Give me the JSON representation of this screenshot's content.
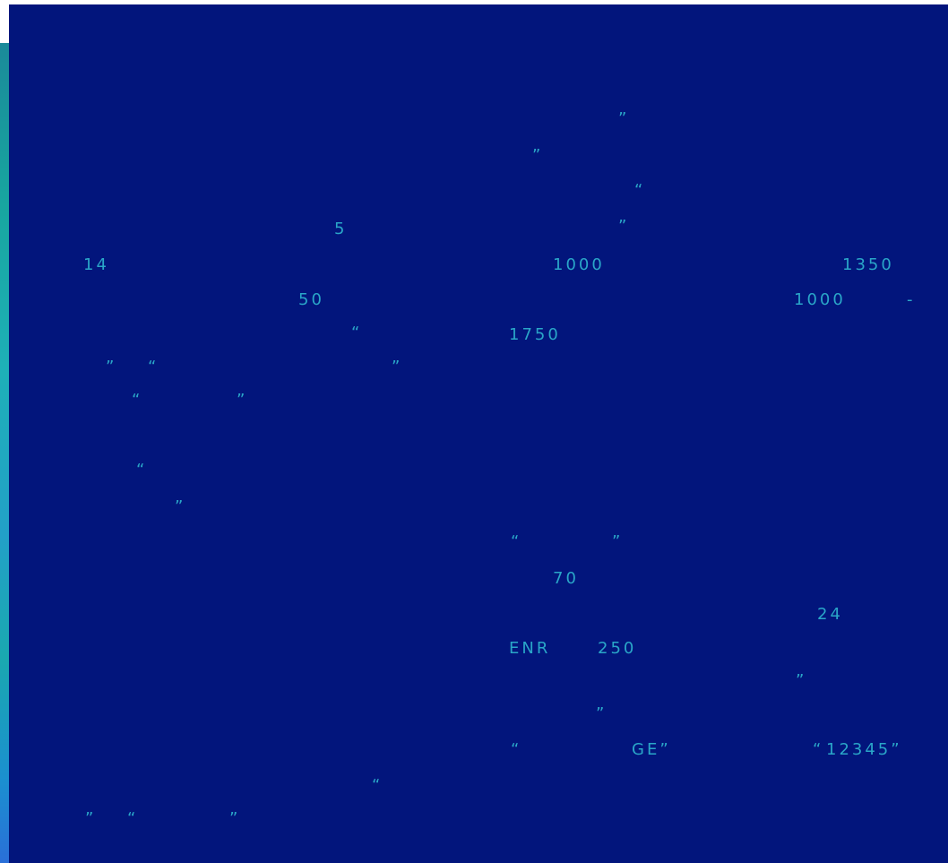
{
  "fragments": [
    "”",
    "”",
    "“",
    "5",
    "”",
    "14",
    "1000",
    "1350",
    "50",
    "1000",
    "-",
    "“",
    "1750",
    "”",
    "“",
    "”",
    "“",
    "”",
    "“",
    "”",
    "“",
    "”",
    "70",
    "24",
    "ENR",
    "250",
    "”",
    "”",
    "“",
    "GE”",
    "“",
    "12345”",
    "“",
    "”",
    "“",
    "”"
  ]
}
